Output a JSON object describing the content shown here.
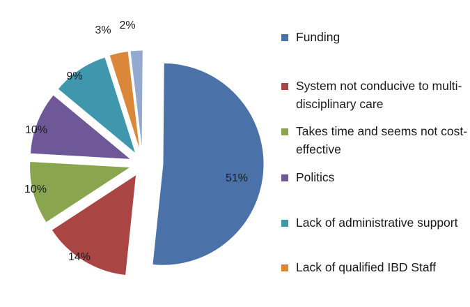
{
  "chart_data": {
    "type": "pie",
    "title": "",
    "slices": [
      {
        "label": "Funding",
        "value": 51,
        "display": "51%",
        "color": "#4a72a8"
      },
      {
        "label": "System not conducive to multi-disciplinary care",
        "value": 14,
        "display": "14%",
        "color": "#a94543"
      },
      {
        "label": "Takes time and seems not cost-effective",
        "value": 10,
        "display": "10%",
        "color": "#89a64e"
      },
      {
        "label": "Politics",
        "value": 10,
        "display": "10%",
        "color": "#6f5897"
      },
      {
        "label": "Lack of administrative support",
        "value": 9,
        "display": "9%",
        "color": "#3f97ad"
      },
      {
        "label": "Lack of qualified IBD Staff",
        "value": 3,
        "display": "3%",
        "color": "#da8739"
      },
      {
        "label": "",
        "value": 2,
        "display": "2%",
        "color": "#93a9cf"
      }
    ],
    "legend_position": "right",
    "exploded": true
  },
  "legend": {
    "items": [
      {
        "label": "Funding",
        "color": "#4a72a8"
      },
      {
        "label": "System not conducive to multi-disciplinary care",
        "color": "#a94543"
      },
      {
        "label": "Takes time and seems not cost-effective",
        "color": "#89a64e"
      },
      {
        "label": "Politics",
        "color": "#6f5897"
      },
      {
        "label": "Lack of administrative support",
        "color": "#3f97ad"
      },
      {
        "label": "Lack of qualified IBD Staff",
        "color": "#da8739"
      }
    ]
  }
}
